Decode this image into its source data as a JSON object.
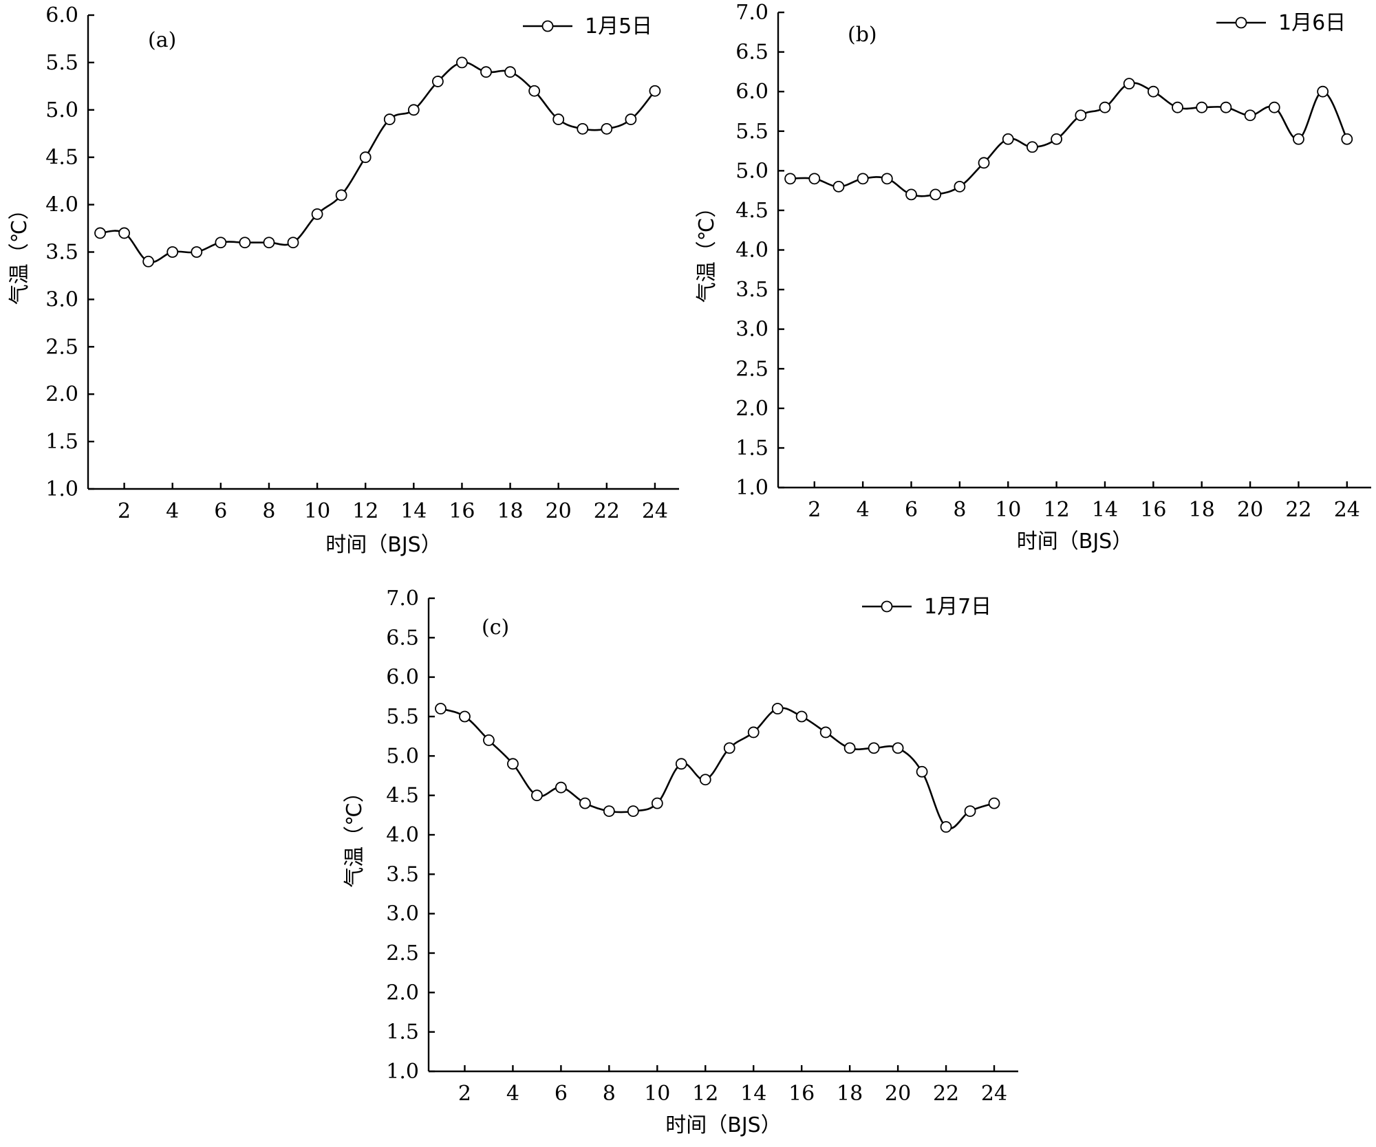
{
  "chart_data": [
    {
      "type": "line",
      "panel_label": "(a)",
      "xlabel": "时间（BJS）",
      "ylabel": "气温（℃）",
      "xlim": [
        0.5,
        25
      ],
      "ylim": [
        1.0,
        6.0
      ],
      "xticks": [
        2,
        4,
        6,
        8,
        10,
        12,
        14,
        16,
        18,
        20,
        22,
        24
      ],
      "yticks": [
        "1.0",
        "1.5",
        "2.0",
        "2.5",
        "3.0",
        "3.5",
        "4.0",
        "4.5",
        "5.0",
        "5.5",
        "6.0"
      ],
      "legend_position": "top-right",
      "grid": false,
      "series": [
        {
          "name": "1月5日",
          "x": [
            1,
            2,
            3,
            4,
            5,
            6,
            7,
            8,
            9,
            10,
            11,
            12,
            13,
            14,
            15,
            16,
            17,
            18,
            19,
            20,
            21,
            22,
            23,
            24
          ],
          "values": [
            3.7,
            3.7,
            3.4,
            3.5,
            3.5,
            3.6,
            3.6,
            3.6,
            3.6,
            3.9,
            4.1,
            4.5,
            4.9,
            5.0,
            5.3,
            5.5,
            5.4,
            5.4,
            5.2,
            4.9,
            4.8,
            4.8,
            4.9,
            5.2
          ]
        }
      ]
    },
    {
      "type": "line",
      "panel_label": "(b)",
      "xlabel": "时间（BJS）",
      "ylabel": "气温（℃）",
      "xlim": [
        0.5,
        25
      ],
      "ylim": [
        1.0,
        7.0
      ],
      "xticks": [
        2,
        4,
        6,
        8,
        10,
        12,
        14,
        16,
        18,
        20,
        22,
        24
      ],
      "yticks": [
        "1.0",
        "1.5",
        "2.0",
        "2.5",
        "3.0",
        "3.5",
        "4.0",
        "4.5",
        "5.0",
        "5.5",
        "6.0",
        "6.5",
        "7.0"
      ],
      "legend_position": "top-right",
      "grid": false,
      "series": [
        {
          "name": "1月6日",
          "x": [
            1,
            2,
            3,
            4,
            5,
            6,
            7,
            8,
            9,
            10,
            11,
            12,
            13,
            14,
            15,
            16,
            17,
            18,
            19,
            20,
            21,
            22,
            23,
            24
          ],
          "values": [
            4.9,
            4.9,
            4.8,
            4.9,
            4.9,
            4.7,
            4.7,
            4.8,
            5.1,
            5.4,
            5.3,
            5.4,
            5.7,
            5.8,
            6.1,
            6.0,
            5.8,
            5.8,
            5.8,
            5.7,
            5.8,
            5.4,
            6.0,
            5.4
          ]
        }
      ]
    },
    {
      "type": "line",
      "panel_label": "(c)",
      "xlabel": "时间（BJS）",
      "ylabel": "气温（℃）",
      "xlim": [
        0.5,
        25
      ],
      "ylim": [
        1.0,
        7.0
      ],
      "xticks": [
        2,
        4,
        6,
        8,
        10,
        12,
        14,
        16,
        18,
        20,
        22,
        24
      ],
      "yticks": [
        "1.0",
        "1.5",
        "2.0",
        "2.5",
        "3.0",
        "3.5",
        "4.0",
        "4.5",
        "5.0",
        "5.5",
        "6.0",
        "6.5",
        "7.0"
      ],
      "legend_position": "top-right",
      "grid": false,
      "series": [
        {
          "name": "1月7日",
          "x": [
            1,
            2,
            3,
            4,
            5,
            6,
            7,
            8,
            9,
            10,
            11,
            12,
            13,
            14,
            15,
            16,
            17,
            18,
            19,
            20,
            21,
            22,
            23,
            24
          ],
          "values": [
            5.6,
            5.5,
            5.2,
            4.9,
            4.5,
            4.6,
            4.4,
            4.3,
            4.3,
            4.4,
            4.9,
            4.7,
            5.1,
            5.3,
            5.6,
            5.5,
            5.3,
            5.1,
            5.1,
            5.1,
            4.8,
            4.1,
            4.3,
            4.4
          ]
        }
      ]
    }
  ]
}
